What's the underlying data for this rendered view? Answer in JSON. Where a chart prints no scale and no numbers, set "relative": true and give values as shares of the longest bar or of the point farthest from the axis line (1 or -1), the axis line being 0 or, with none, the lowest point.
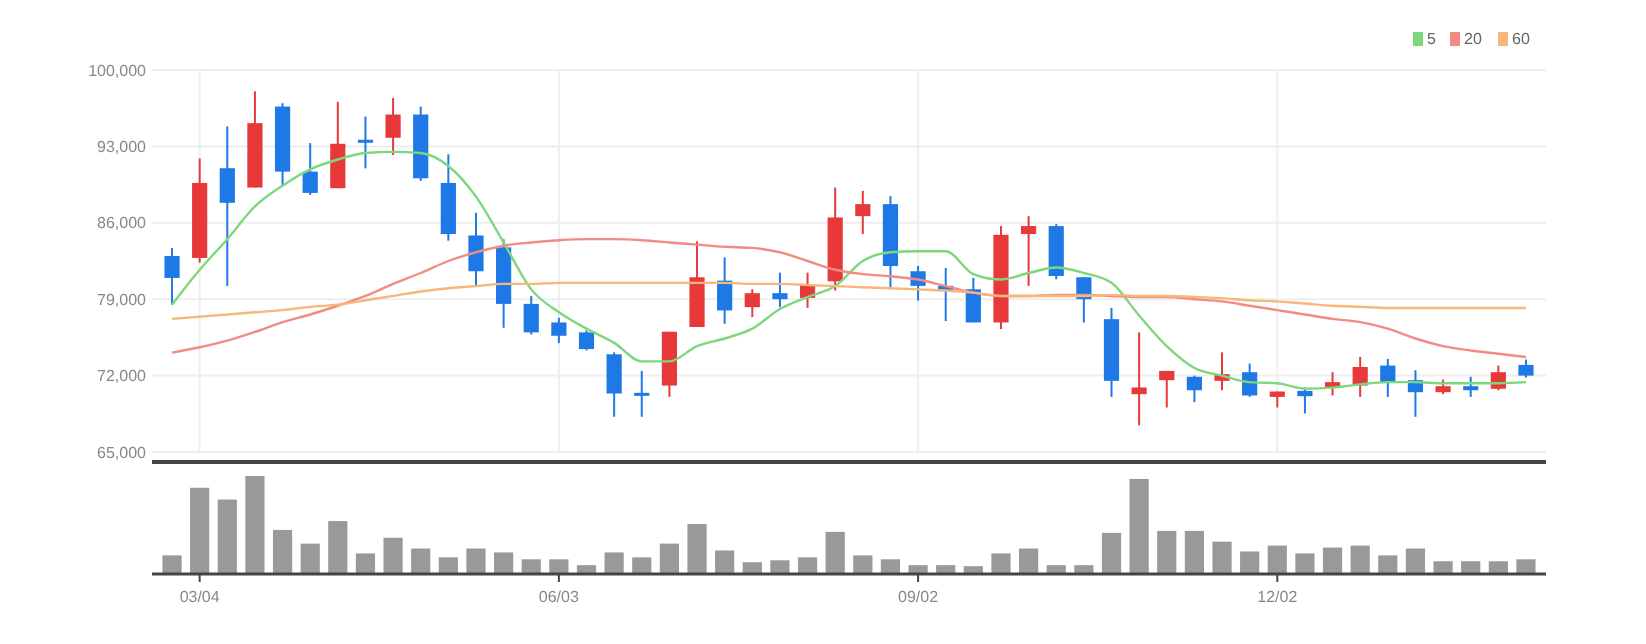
{
  "chart_data": [
    {
      "type": "candlestick",
      "categories": [
        null,
        null,
        null,
        null,
        null,
        null,
        null,
        null,
        null,
        null,
        null,
        null,
        null,
        null,
        null,
        null,
        null,
        null,
        null,
        null,
        null,
        null,
        null,
        null,
        null,
        null,
        null,
        null,
        null,
        null,
        null,
        null,
        null,
        null,
        null,
        null,
        null,
        null,
        null,
        null,
        null,
        null,
        null,
        null,
        null,
        null,
        null,
        null,
        null,
        null
      ],
      "ohlc": [
        [
          82960,
          83690,
          78510,
          80950
        ],
        [
          82780,
          91900,
          82350,
          89650
        ],
        [
          91000,
          94830,
          80220,
          87830
        ],
        [
          89230,
          98050,
          89230,
          95130
        ],
        [
          96650,
          96960,
          89470,
          90690
        ],
        [
          90690,
          93300,
          88560,
          88740
        ],
        [
          89170,
          97080,
          89170,
          93240
        ],
        [
          93610,
          95740,
          90990,
          93490
        ],
        [
          93790,
          97440,
          92210,
          95920
        ],
        [
          95920,
          96650,
          89840,
          90080
        ],
        [
          89650,
          92270,
          84360,
          84970
        ],
        [
          84840,
          86920,
          80220,
          81560
        ],
        [
          83750,
          84480,
          76380,
          78570
        ],
        [
          78570,
          79300,
          75770,
          75960
        ],
        [
          76870,
          77300,
          74980,
          75650
        ],
        [
          75960,
          76140,
          74310,
          74430
        ],
        [
          73950,
          74130,
          68230,
          70360
        ],
        [
          70420,
          72430,
          68230,
          70240
        ],
        [
          71090,
          76020,
          70050,
          76020
        ],
        [
          76450,
          84300,
          76450,
          81010
        ],
        [
          80700,
          82830,
          76750,
          77970
        ],
        [
          78270,
          79910,
          77360,
          79550
        ],
        [
          79550,
          81430,
          78270,
          79000
        ],
        [
          79120,
          81430,
          78210,
          80280
        ],
        [
          80640,
          89230,
          79790,
          86490
        ],
        [
          86610,
          88930,
          84970,
          87710
        ],
        [
          87710,
          88440,
          79910,
          82040
        ],
        [
          81560,
          82040,
          78880,
          80220
        ],
        [
          80220,
          81860,
          76990,
          79790
        ],
        [
          79910,
          80950,
          76870,
          76870
        ],
        [
          76870,
          85700,
          76260,
          84900
        ],
        [
          84970,
          86610,
          80220,
          85700
        ],
        [
          85700,
          85880,
          80830,
          81130
        ],
        [
          81010,
          81010,
          76870,
          79000
        ],
        [
          77170,
          78210,
          70050,
          71520
        ],
        [
          70300,
          75960,
          67440,
          70910
        ],
        [
          71580,
          72430,
          69080,
          72430
        ],
        [
          71890,
          72000,
          69570,
          70660
        ],
        [
          71520,
          74130,
          70660,
          72130
        ],
        [
          72310,
          73100,
          70050,
          70180
        ],
        [
          70050,
          70540,
          69080,
          70540
        ],
        [
          70600,
          70910,
          68530,
          70110
        ],
        [
          70910,
          72310,
          70180,
          71400
        ],
        [
          71090,
          73710,
          70050,
          72790
        ],
        [
          72920,
          73530,
          70050,
          71400
        ],
        [
          71580,
          72490,
          68230,
          70480
        ],
        [
          70480,
          71640,
          70300,
          71030
        ],
        [
          71030,
          71890,
          70050,
          70660
        ],
        [
          70790,
          72920,
          70660,
          72310
        ],
        [
          72980,
          73470,
          71820,
          72000
        ]
      ],
      "series": [
        {
          "type": "line",
          "name": "5",
          "color": "#7dd87d",
          "values": [
            78500,
            81700,
            84500,
            87500,
            89400,
            90900,
            91800,
            92400,
            92500,
            92400,
            91200,
            88400,
            84200,
            79900,
            77800,
            76300,
            75000,
            73300,
            73300,
            74700,
            75400,
            76300,
            78100,
            79200,
            80200,
            82500,
            83300,
            83400,
            83400,
            81300,
            80800,
            81400,
            81900,
            81400,
            80500,
            77500,
            74700,
            72700,
            72000,
            71400,
            71300,
            70800,
            70900,
            71200,
            71400,
            71400,
            71300,
            71300,
            71300,
            71400
          ]
        },
        {
          "type": "line",
          "name": "20",
          "color": "#f28b82",
          "values": [
            74100,
            74600,
            75200,
            76000,
            76900,
            77600,
            78400,
            79300,
            80400,
            81400,
            82500,
            83300,
            83900,
            84200,
            84400,
            84500,
            84500,
            84400,
            84200,
            84000,
            83800,
            83700,
            83300,
            82500,
            81700,
            81300,
            81100,
            80800,
            80200,
            79600,
            79300,
            79300,
            79400,
            79400,
            79300,
            79200,
            79200,
            79000,
            78800,
            78400,
            78000,
            77600,
            77200,
            76900,
            76300,
            75400,
            74700,
            74300,
            74000,
            73700
          ]
        },
        {
          "type": "line",
          "name": "60",
          "color": "#f7b77a",
          "values": [
            77200,
            77400,
            77600,
            77800,
            78000,
            78300,
            78500,
            78900,
            79300,
            79700,
            80000,
            80200,
            80400,
            80400,
            80500,
            80500,
            80500,
            80500,
            80500,
            80500,
            80500,
            80400,
            80400,
            80300,
            80200,
            80100,
            80000,
            79900,
            79800,
            79600,
            79300,
            79300,
            79300,
            79300,
            79400,
            79300,
            79300,
            79200,
            79100,
            78900,
            78800,
            78600,
            78400,
            78300,
            78200,
            78200,
            78200,
            78200,
            78200,
            78200
          ]
        }
      ],
      "ylim": [
        65000,
        100000
      ],
      "yticks": [
        {
          "value": 65000,
          "label": "65,000"
        },
        {
          "value": 72000,
          "label": "72,000"
        },
        {
          "value": 79000,
          "label": "79,000"
        },
        {
          "value": 86000,
          "label": "86,000"
        },
        {
          "value": 93000,
          "label": "93,000"
        },
        {
          "value": 100000,
          "label": "100,000"
        }
      ],
      "grid": true,
      "legend": "top right",
      "tick_labels": "y"
    },
    {
      "type": "bar",
      "relative": true,
      "color": "#999999",
      "tick_labels": "x",
      "categories": [
        null,
        "03/04",
        null,
        null,
        null,
        null,
        null,
        null,
        null,
        null,
        null,
        null,
        null,
        null,
        "06/03",
        null,
        null,
        null,
        null,
        null,
        null,
        null,
        null,
        null,
        null,
        null,
        null,
        "09/02",
        null,
        null,
        null,
        null,
        null,
        null,
        null,
        null,
        null,
        null,
        null,
        null,
        "12/02",
        null,
        null,
        null,
        null,
        null,
        null,
        null,
        null,
        null
      ],
      "values": [
        0.19,
        0.88,
        0.76,
        1,
        0.45,
        0.31,
        0.54,
        0.21,
        0.37,
        0.26,
        0.17,
        0.26,
        0.22,
        0.15,
        0.15,
        0.09,
        0.22,
        0.17,
        0.31,
        0.51,
        0.24,
        0.12,
        0.14,
        0.17,
        0.43,
        0.19,
        0.15,
        0.09,
        0.09,
        0.08,
        0.21,
        0.26,
        0.09,
        0.09,
        0.42,
        0.97,
        0.44,
        0.44,
        0.33,
        0.23,
        0.29,
        0.21,
        0.27,
        0.29,
        0.19,
        0.26,
        0.13,
        0.13,
        0.13,
        0.15
      ]
    }
  ]
}
